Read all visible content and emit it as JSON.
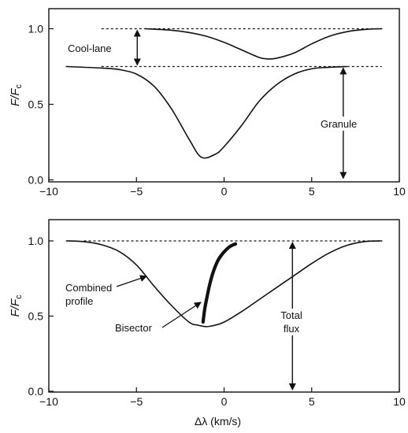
{
  "chart_data": [
    {
      "type": "line",
      "title": "",
      "xlabel": "",
      "ylabel": "F/F",
      "ylabel_sub": "c",
      "xlim": [
        -10,
        10
      ],
      "ylim": [
        0,
        1.1
      ],
      "xticks": [
        -10,
        -5,
        0,
        5,
        10
      ],
      "yticks": [
        0.0,
        0.5,
        1.0
      ],
      "ytick_labels": [
        "0.0",
        "0.5",
        "1.0"
      ],
      "grid": false,
      "series": [
        {
          "role": "cool-lane-profile",
          "x": [
            -4.5,
            -3,
            -2,
            -1,
            0,
            1,
            2,
            2.5,
            3,
            4,
            5,
            6,
            7,
            8,
            9
          ],
          "y": [
            1.0,
            0.99,
            0.975,
            0.95,
            0.91,
            0.86,
            0.81,
            0.8,
            0.805,
            0.84,
            0.9,
            0.95,
            0.98,
            0.995,
            1.0
          ]
        },
        {
          "role": "granule-profile",
          "x": [
            -9,
            -7,
            -6,
            -5,
            -4,
            -3,
            -2,
            -1.3,
            -0.5,
            0,
            1,
            2,
            3,
            4,
            5,
            6,
            7
          ],
          "y": [
            0.75,
            0.74,
            0.73,
            0.7,
            0.62,
            0.47,
            0.27,
            0.15,
            0.17,
            0.22,
            0.36,
            0.52,
            0.63,
            0.7,
            0.735,
            0.745,
            0.75
          ]
        }
      ],
      "reference_lines": [
        {
          "y": 1.0,
          "x": [
            -7,
            9
          ]
        },
        {
          "y": 0.75,
          "x": [
            -7,
            9
          ]
        }
      ],
      "annotations": [
        {
          "text": "Cool-lane",
          "arrow": {
            "x": -5,
            "y1": 1.0,
            "y2": 0.75
          }
        },
        {
          "text": "Granule",
          "arrow": {
            "x": 6.8,
            "y1": 0.75,
            "y2": 0.0
          }
        }
      ]
    },
    {
      "type": "line",
      "title": "",
      "xlabel": "Δλ (km/s)",
      "ylabel": "F/F",
      "ylabel_sub": "c",
      "xlim": [
        -10,
        10
      ],
      "ylim": [
        0,
        1.1
      ],
      "xticks": [
        -10,
        -5,
        0,
        5,
        10
      ],
      "yticks": [
        0.0,
        0.5,
        1.0
      ],
      "ytick_labels": [
        "0.0",
        "0.5",
        "1.0"
      ],
      "grid": false,
      "series": [
        {
          "role": "combined-profile",
          "x": [
            -9,
            -8,
            -7,
            -6,
            -5,
            -4,
            -3,
            -2,
            -1.5,
            -1,
            -0.5,
            0,
            1,
            2,
            3,
            4,
            5,
            6,
            7,
            8,
            9
          ],
          "y": [
            1.0,
            0.995,
            0.975,
            0.93,
            0.84,
            0.7,
            0.57,
            0.46,
            0.44,
            0.43,
            0.44,
            0.46,
            0.53,
            0.61,
            0.69,
            0.77,
            0.85,
            0.92,
            0.97,
            0.995,
            1.0
          ]
        },
        {
          "role": "bisector",
          "x": [
            -1.2,
            -1.1,
            -0.95,
            -0.8,
            -0.6,
            -0.35,
            -0.05,
            0.3,
            0.65
          ],
          "y": [
            0.46,
            0.55,
            0.64,
            0.72,
            0.8,
            0.87,
            0.92,
            0.96,
            0.98
          ]
        }
      ],
      "reference_lines": [
        {
          "y": 1.0,
          "x": [
            -8,
            9
          ]
        }
      ],
      "annotations": [
        {
          "text": "Combined profile",
          "lines": [
            "Combined",
            "profile"
          ]
        },
        {
          "text": "Bisector"
        },
        {
          "text": "Total flux",
          "lines": [
            "Total",
            "flux"
          ],
          "arrow": {
            "x": 3.9,
            "y1": 1.0,
            "y2": 0.0
          }
        }
      ]
    }
  ]
}
